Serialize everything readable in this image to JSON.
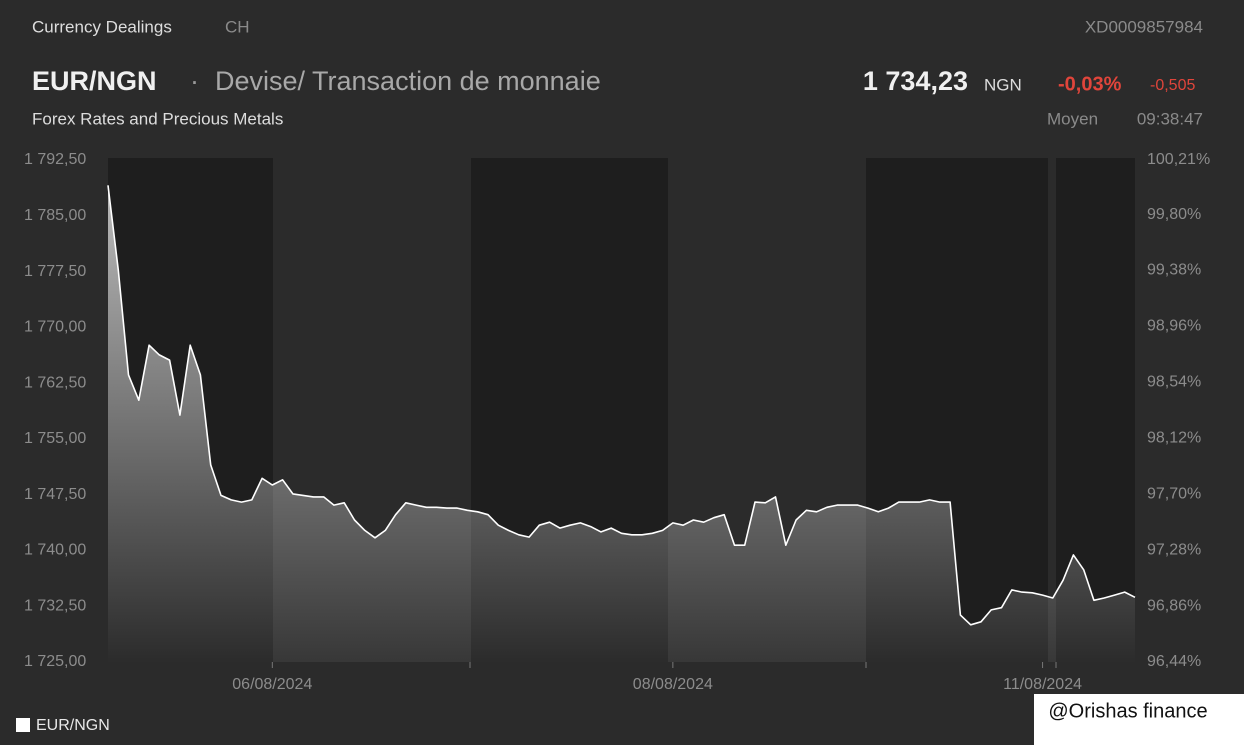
{
  "chart_data": {
    "type": "line",
    "header": {
      "section": "Currency Dealings",
      "country": "CH",
      "isin": "XD0009857984",
      "symbol": "EUR/NGN",
      "separator": "·",
      "description": "Devise/ Transaction de monnaie",
      "price": "1 734,23",
      "currency": "NGN",
      "change_pct": "-0,03%",
      "change": "-0,505",
      "subtitle": "Forex Rates and Precious Metals",
      "price_type": "Moyen",
      "time": "09:38:47"
    },
    "categories": [
      null,
      null,
      null,
      null,
      null,
      null,
      null,
      null,
      null,
      null,
      null,
      null,
      null,
      null,
      null,
      null,
      "06/08/2024",
      null,
      null,
      null,
      null,
      null,
      null,
      null,
      null,
      null,
      null,
      null,
      null,
      null,
      null,
      null,
      null,
      null,
      null,
      null,
      null,
      null,
      null,
      null,
      null,
      null,
      null,
      null,
      null,
      null,
      null,
      null,
      null,
      null,
      null,
      null,
      null,
      null,
      null,
      "08/08/2024",
      null,
      null,
      null,
      null,
      null,
      null,
      null,
      null,
      null,
      null,
      null,
      null,
      null,
      null,
      null,
      null,
      null,
      null,
      null,
      null,
      null,
      null,
      null,
      null,
      null,
      null,
      null,
      null,
      null,
      null,
      null,
      null,
      null,
      null,
      null,
      "11/08/2024",
      null,
      null,
      null,
      null,
      null,
      null,
      null,
      null,
      null
    ],
    "series": [
      {
        "name": "EUR/NGN",
        "color": "#ffffff",
        "values": [
          1789.1,
          1777.7,
          1763.6,
          1760.2,
          1767.6,
          1766.3,
          1765.6,
          1758.2,
          1767.6,
          1763.6,
          1751.5,
          1747.4,
          1746.8,
          1746.5,
          1746.8,
          1749.7,
          1748.8,
          1749.5,
          1747.6,
          1747.4,
          1747.2,
          1747.2,
          1746.1,
          1746.4,
          1744.1,
          1742.7,
          1741.7,
          1742.7,
          1744.8,
          1746.4,
          1746.1,
          1745.8,
          1745.8,
          1745.7,
          1745.7,
          1745.4,
          1745.2,
          1744.8,
          1743.4,
          1742.7,
          1742.1,
          1741.8,
          1743.4,
          1743.8,
          1743.0,
          1743.4,
          1743.7,
          1743.2,
          1742.5,
          1743.0,
          1742.3,
          1742.1,
          1742.1,
          1742.3,
          1742.7,
          1743.7,
          1743.4,
          1744.1,
          1743.8,
          1744.4,
          1744.8,
          1740.7,
          1740.7,
          1746.5,
          1746.4,
          1747.2,
          1740.7,
          1744.1,
          1745.4,
          1745.2,
          1745.8,
          1746.1,
          1746.1,
          1746.1,
          1745.7,
          1745.2,
          1745.7,
          1746.5,
          1746.5,
          1746.5,
          1746.8,
          1746.5,
          1746.5,
          1731.3,
          1730.0,
          1730.4,
          1732.0,
          1732.3,
          1734.7,
          1734.4,
          1734.3,
          1734.0,
          1733.6,
          1736.0,
          1739.4,
          1737.4,
          1733.3,
          1733.6,
          1734.0,
          1734.4,
          1733.7
        ]
      }
    ],
    "ylim": [
      1725,
      1792.5
    ],
    "yticks": [
      {
        "value": 1725,
        "label": "1 725,00"
      },
      {
        "value": 1732.5,
        "label": "1 732,50"
      },
      {
        "value": 1740,
        "label": "1 740,00"
      },
      {
        "value": 1747.5,
        "label": "1 747,50"
      },
      {
        "value": 1755,
        "label": "1 755,00"
      },
      {
        "value": 1762.5,
        "label": "1 762,50"
      },
      {
        "value": 1770,
        "label": "1 770,00"
      },
      {
        "value": 1777.5,
        "label": "1 777,50"
      },
      {
        "value": 1785,
        "label": "1 785,00"
      },
      {
        "value": 1792.5,
        "label": "1 792,50"
      }
    ],
    "y2lim": [
      96.44,
      100.21
    ],
    "y2ticks": [
      {
        "value": 96.44,
        "label": "96,44%"
      },
      {
        "value": 96.86,
        "label": "96,86%"
      },
      {
        "value": 97.28,
        "label": "97,28%"
      },
      {
        "value": 97.7,
        "label": "97,70%"
      },
      {
        "value": 98.12,
        "label": "98,12%"
      },
      {
        "value": 98.54,
        "label": "98,54%"
      },
      {
        "value": 98.96,
        "label": "98,96%"
      },
      {
        "value": 99.38,
        "label": "99,38%"
      },
      {
        "value": 99.8,
        "label": "99,80%"
      },
      {
        "value": 100.21,
        "label": "100,21%"
      }
    ],
    "grid": false,
    "watermark": "@Orishas finance"
  }
}
